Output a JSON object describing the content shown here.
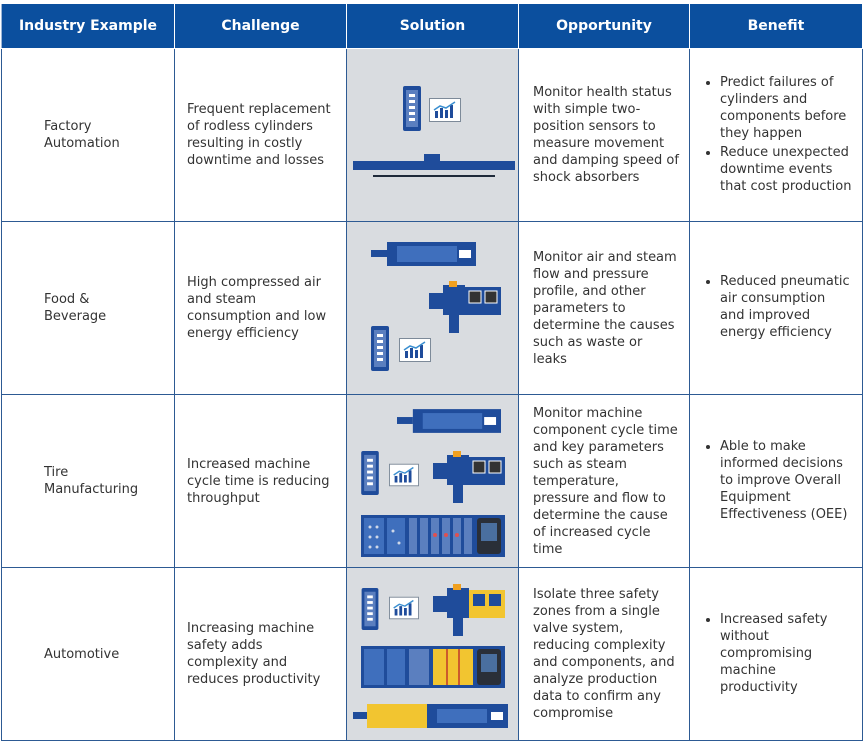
{
  "table": {
    "header": [
      "Industry Example",
      "Challenge",
      "Solution",
      "Opportunity",
      "Benefit"
    ],
    "rows": [
      {
        "industry": "Factory Automation",
        "challenge": "Frequent replacement of rodless cylinders resulting in costly downtime and losses",
        "opportunity": "Monitor health status with simple two-position sensors to measure movement and damping speed of shock absorbers",
        "benefit": [
          "Predict failures of cylinders and components before they happen",
          "Reduce unexpected downtime events that cost production"
        ]
      },
      {
        "industry": "Food & Beverage",
        "challenge": "High compressed air and steam consumption and low energy efficiency",
        "opportunity": "Monitor air and steam flow and pressure profile, and other parameters to determine the causes such as waste or leaks",
        "benefit": [
          "Reduced pneumatic air consumption and improved energy efficiency"
        ]
      },
      {
        "industry": "Tire Manufacturing",
        "challenge": "Increased machine cycle time is reducing throughput",
        "opportunity": "Monitor machine component cycle time and key parameters such as steam temperature, pressure and flow to determine the cause of increased cycle time",
        "benefit": [
          "Able to make informed decisions to improve Overall Equipment Effectiveness (OEE)"
        ]
      },
      {
        "industry": "Automotive",
        "challenge": "Increasing machine safety adds complexity and reduces productivity",
        "opportunity": "Isolate three safety zones from a single valve system, reducing complexity and components, and analyze production data to confirm any compromise",
        "benefit": [
          "Increased safety without compromising machine productivity"
        ]
      }
    ]
  }
}
